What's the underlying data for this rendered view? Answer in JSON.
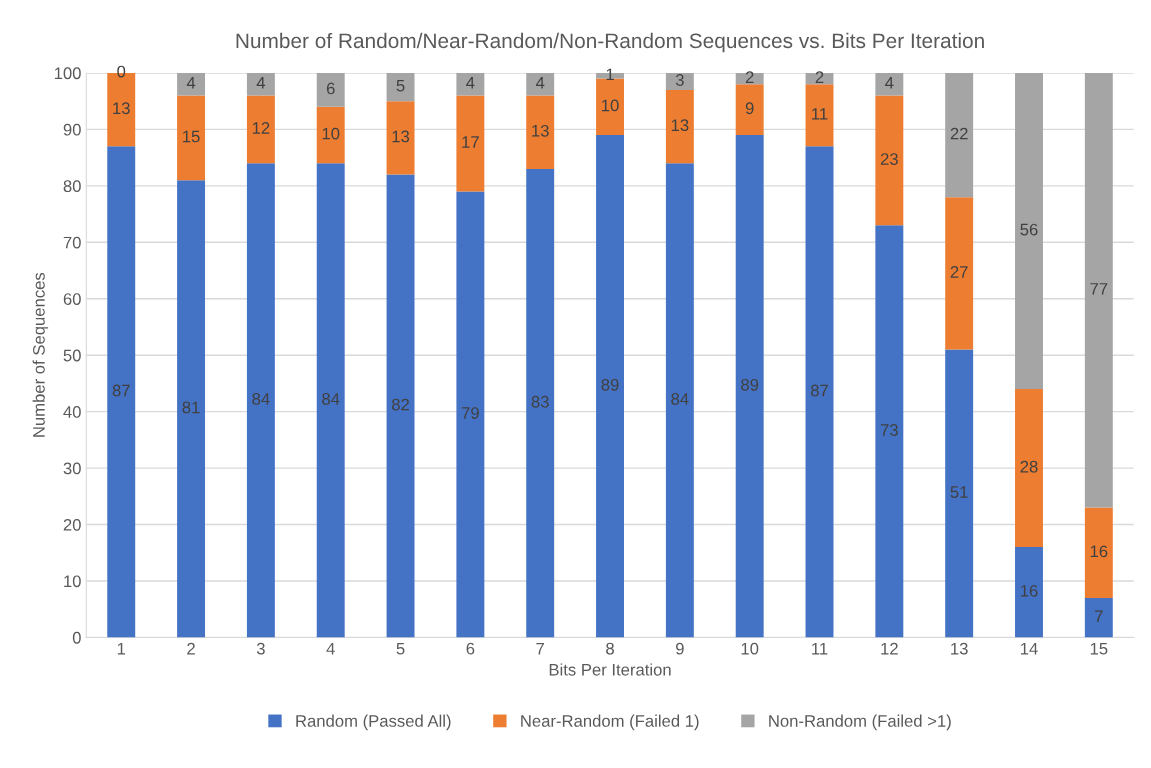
{
  "chart_data": {
    "type": "bar",
    "title": "Number of Random/Near-Random/Non-Random Sequences vs. Bits Per Iteration",
    "xlabel": "Bits Per Iteration",
    "ylabel": "Number of Sequences",
    "categories": [
      "1",
      "2",
      "3",
      "4",
      "5",
      "6",
      "7",
      "8",
      "9",
      "10",
      "11",
      "12",
      "13",
      "14",
      "15"
    ],
    "series": [
      {
        "name": "Random (Passed All)",
        "color": "#4472c4",
        "values": [
          87,
          81,
          84,
          84,
          82,
          79,
          83,
          89,
          84,
          89,
          87,
          73,
          51,
          16,
          7
        ]
      },
      {
        "name": "Near-Random (Failed 1)",
        "color": "#ed7d31",
        "values": [
          13,
          15,
          12,
          10,
          13,
          17,
          13,
          10,
          13,
          9,
          11,
          23,
          27,
          28,
          16
        ]
      },
      {
        "name": "Non-Random (Failed >1)",
        "color": "#a5a5a5",
        "values": [
          0,
          4,
          4,
          6,
          5,
          4,
          4,
          1,
          3,
          2,
          2,
          4,
          22,
          56,
          77
        ]
      }
    ],
    "stacked": true,
    "ylim": [
      0,
      100
    ],
    "yticks": [
      0,
      10,
      20,
      30,
      40,
      50,
      60,
      70,
      80,
      90,
      100
    ],
    "grid": "y",
    "legend": "bottom",
    "data_labels": true
  }
}
